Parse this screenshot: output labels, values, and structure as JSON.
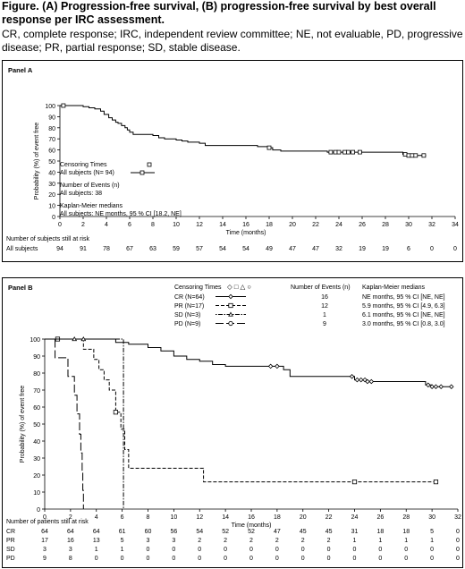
{
  "header": {
    "title": "Figure. (A) Progression-free survival, (B) progression-free survival by best overall response per IRC assessment.",
    "caption": "CR, complete response; IRC, independent review committee; NE, not evaluable, PD, progressive disease; PR, partial response; SD, stable disease."
  },
  "chart_data": [
    {
      "type": "line",
      "panel_label": "Panel A",
      "ylabel": "Probability (%) of event free",
      "xlabel": "Time (months)",
      "xlim": [
        0,
        34
      ],
      "ylim": [
        0,
        100
      ],
      "x_ticks": [
        "0",
        "2",
        "4",
        "6",
        "8",
        "10",
        "12",
        "14",
        "16",
        "18",
        "20",
        "22",
        "24",
        "26",
        "28",
        "30",
        "32",
        "34"
      ],
      "y_ticks": [
        "0",
        "10",
        "20",
        "30",
        "40",
        "50",
        "60",
        "70",
        "80",
        "90",
        "100"
      ],
      "legend": {
        "censoring_label": "Censoring Times",
        "series_label": "All subjects (N= 94)",
        "events_title": "Number of Events (n)",
        "events_text": "All subjects: 38",
        "km_title": "Kaplan-Meier medians",
        "km_text": "All subjects: NE months, 95 % CI [18.2, NE]"
      },
      "series": [
        {
          "name": "All subjects (N= 94)",
          "color": "#000000",
          "steps": [
            [
              0,
              100
            ],
            [
              2.0,
              99
            ],
            [
              2.5,
              98
            ],
            [
              3.0,
              97
            ],
            [
              3.5,
              95
            ],
            [
              3.8,
              92
            ],
            [
              4.2,
              89
            ],
            [
              4.5,
              87
            ],
            [
              4.8,
              85
            ],
            [
              5.0,
              84
            ],
            [
              5.3,
              82
            ],
            [
              5.6,
              80
            ],
            [
              5.8,
              78
            ],
            [
              6.0,
              76
            ],
            [
              6.3,
              74
            ],
            [
              8.0,
              73
            ],
            [
              8.5,
              71
            ],
            [
              9.0,
              70
            ],
            [
              10.0,
              69
            ],
            [
              10.5,
              68
            ],
            [
              11.0,
              67
            ],
            [
              12.0,
              66
            ],
            [
              12.5,
              64
            ],
            [
              17.0,
              63
            ],
            [
              18.0,
              62
            ],
            [
              18.3,
              60
            ],
            [
              19.0,
              59
            ],
            [
              23.0,
              58
            ],
            [
              29.5,
              56
            ],
            [
              30.0,
              55
            ],
            [
              31.5,
              55
            ]
          ],
          "censor_x": [
            0.3,
            18.0,
            23.3,
            23.7,
            24.0,
            24.5,
            24.8,
            25.2,
            25.8,
            29.7,
            30.0,
            30.3,
            30.6,
            31.3
          ]
        }
      ],
      "risk_table": {
        "title": "Number of subjects still at risk",
        "rows": [
          {
            "label": "All subjects",
            "values": [
              "94",
              "91",
              "78",
              "67",
              "63",
              "59",
              "57",
              "54",
              "54",
              "49",
              "47",
              "47",
              "32",
              "19",
              "19",
              "6",
              "0",
              "0"
            ]
          }
        ]
      }
    },
    {
      "type": "line",
      "panel_label": "Panel B",
      "ylabel": "Probability (%) of event free",
      "xlabel": "Time (months)",
      "xlim": [
        0,
        32
      ],
      "ylim": [
        0,
        100
      ],
      "x_ticks": [
        "0",
        "2",
        "4",
        "6",
        "8",
        "10",
        "12",
        "14",
        "16",
        "18",
        "20",
        "22",
        "24",
        "26",
        "28",
        "30",
        "32"
      ],
      "y_ticks": [
        "0",
        "10",
        "20",
        "30",
        "40",
        "50",
        "60",
        "70",
        "80",
        "90",
        "100"
      ],
      "legend": {
        "censoring_label": "Censoring Times",
        "censoring_symbols": "◇ □ △ ○",
        "events_header": "Number of Events (n)",
        "km_header": "Kaplan-Meier medians"
      },
      "series": [
        {
          "name": "CR (N=64)",
          "events": "16",
          "km": "NE months, 95 % CI [NE, NE]",
          "color": "#000000",
          "dash": "",
          "marker": "diamond",
          "steps": [
            [
              0,
              100
            ],
            [
              5.5,
              98
            ],
            [
              6.5,
              97
            ],
            [
              8.0,
              95
            ],
            [
              9.0,
              93
            ],
            [
              10.0,
              90
            ],
            [
              11.0,
              88
            ],
            [
              12.0,
              87
            ],
            [
              13.0,
              85
            ],
            [
              14.0,
              84
            ],
            [
              18.5,
              82
            ],
            [
              19.0,
              78
            ],
            [
              24.0,
              76
            ],
            [
              25.0,
              75
            ],
            [
              29.5,
              73
            ],
            [
              30.0,
              72
            ],
            [
              31.5,
              72
            ]
          ],
          "censor_x": [
            17.5,
            18.0,
            23.8,
            24.2,
            24.5,
            24.8,
            25.0,
            25.3,
            29.7,
            30.0,
            30.3,
            30.7,
            31.5
          ]
        },
        {
          "name": "PR (N=17)",
          "events": "12",
          "km": "5.9 months, 95 % CI [4.9, 6.3]",
          "color": "#000000",
          "dash": "4,2",
          "marker": "square",
          "steps": [
            [
              0,
              100
            ],
            [
              3.0,
              94
            ],
            [
              3.8,
              88
            ],
            [
              4.2,
              82
            ],
            [
              4.6,
              76
            ],
            [
              5.0,
              70
            ],
            [
              5.5,
              57
            ],
            [
              5.9,
              47
            ],
            [
              6.2,
              35
            ],
            [
              6.5,
              24
            ],
            [
              12.3,
              16
            ],
            [
              30.3,
              16
            ]
          ],
          "censor_x": [
            1.0,
            5.5,
            24.0,
            30.3
          ]
        },
        {
          "name": "SD (N=3)",
          "events": "1",
          "km": "6.1 months, 95 % CI [NE, NE]",
          "color": "#000000",
          "dash": "1.5,1.5,5,1.5",
          "marker": "triangle",
          "steps": [
            [
              0,
              100
            ],
            [
              6.1,
              0
            ]
          ],
          "censor_x": [
            2.3,
            3.0
          ]
        },
        {
          "name": "PD (N=9)",
          "events": "9",
          "km": "3.0 months, 95 % CI [0.8, 3.0]",
          "color": "#000000",
          "dash": "9,3",
          "marker": "circle",
          "steps": [
            [
              0,
              100
            ],
            [
              0.8,
              89
            ],
            [
              1.8,
              78
            ],
            [
              2.3,
              67
            ],
            [
              2.5,
              56
            ],
            [
              2.7,
              44
            ],
            [
              2.8,
              33
            ],
            [
              2.9,
              22
            ],
            [
              2.95,
              11
            ],
            [
              3.0,
              0
            ]
          ],
          "censor_x": []
        }
      ],
      "risk_table": {
        "title": "Number of patients still at risk",
        "rows": [
          {
            "label": "CR",
            "values": [
              "64",
              "64",
              "64",
              "61",
              "60",
              "56",
              "54",
              "52",
              "52",
              "47",
              "45",
              "45",
              "31",
              "18",
              "18",
              "5",
              "0"
            ]
          },
          {
            "label": "PR",
            "values": [
              "17",
              "16",
              "13",
              "5",
              "3",
              "3",
              "2",
              "2",
              "2",
              "2",
              "2",
              "2",
              "1",
              "1",
              "1",
              "1",
              "0"
            ]
          },
          {
            "label": "SD",
            "values": [
              "3",
              "3",
              "1",
              "1",
              "0",
              "0",
              "0",
              "0",
              "0",
              "0",
              "0",
              "0",
              "0",
              "0",
              "0",
              "0",
              "0"
            ]
          },
          {
            "label": "PD",
            "values": [
              "9",
              "8",
              "0",
              "0",
              "0",
              "0",
              "0",
              "0",
              "0",
              "0",
              "0",
              "0",
              "0",
              "0",
              "0",
              "0",
              "0"
            ]
          }
        ]
      }
    }
  ]
}
